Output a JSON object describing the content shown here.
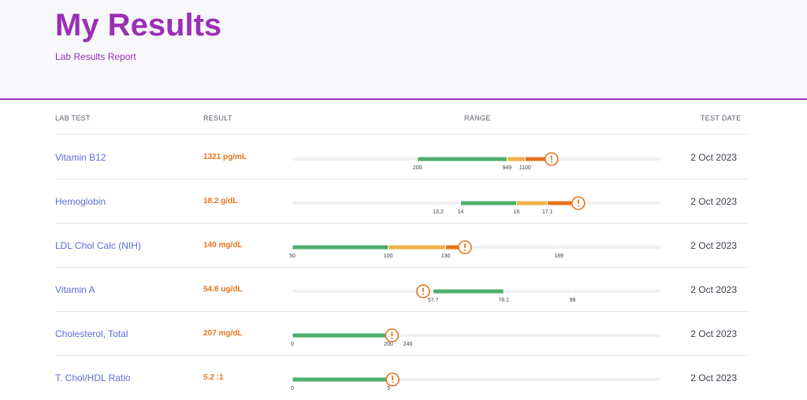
{
  "header": {
    "title": "My Results",
    "subtitle": "Lab Results Report"
  },
  "table": {
    "columns": {
      "lab_test": "LAB TEST",
      "result": "RESULT",
      "range": "RANGE",
      "test_date": "TEST DATE"
    },
    "rows": [
      {
        "name": "Vitamin B12",
        "result": "1321 pg/mL",
        "value": 1321,
        "date": "2 Oct 2023",
        "ticks": [
          {
            "label": "200",
            "value": 200
          },
          {
            "label": "949",
            "value": 949
          },
          {
            "label": "1100",
            "value": 1100
          }
        ],
        "scale": [
          -846,
          2232
        ],
        "zones": [
          {
            "from": 200,
            "to": 949,
            "level": "normal"
          },
          {
            "from": 949,
            "to": 1100,
            "level": "borderline"
          },
          {
            "from": 1100,
            "to": 1321,
            "level": "high"
          }
        ]
      },
      {
        "name": "Hemoglobin",
        "result": "18.2 g/dL",
        "value": 18.2,
        "date": "2 Oct 2023",
        "ticks": [
          {
            "label": "13.2",
            "value": 13.2
          },
          {
            "label": "14",
            "value": 14
          },
          {
            "label": "16",
            "value": 16
          },
          {
            "label": "17.1",
            "value": 17.1
          }
        ],
        "scale": [
          8.0,
          21.13
        ],
        "zones": [
          {
            "from": 14,
            "to": 16,
            "level": "normal"
          },
          {
            "from": 16,
            "to": 17.1,
            "level": "borderline"
          },
          {
            "from": 17.1,
            "to": 18.2,
            "level": "high"
          }
        ]
      },
      {
        "name": "LDL Chol Calc (NIH)",
        "result": "140 mg/dL",
        "value": 140,
        "date": "2 Oct 2023",
        "ticks": [
          {
            "label": "50",
            "value": 50
          },
          {
            "label": "100",
            "value": 100
          },
          {
            "label": "130",
            "value": 130
          },
          {
            "label": "189",
            "value": 189
          }
        ],
        "scale": [
          50,
          242
        ],
        "zones": [
          {
            "from": 50,
            "to": 100,
            "level": "normal"
          },
          {
            "from": 100,
            "to": 130,
            "level": "borderline"
          },
          {
            "from": 130,
            "to": 140,
            "level": "high"
          }
        ]
      },
      {
        "name": "Vitamin A",
        "result": "54.8 ug/dL",
        "value": 54.8,
        "date": "2 Oct 2023",
        "ticks": [
          {
            "label": "57.7",
            "value": 57.7
          },
          {
            "label": "78.1",
            "value": 78.1
          },
          {
            "label": "98",
            "value": 98
          }
        ],
        "scale": [
          17.0,
          123.4
        ],
        "zones": [
          {
            "from": 57.7,
            "to": 78.1,
            "level": "normal"
          }
        ]
      },
      {
        "name": "Cholesterol, Total",
        "result": "207 mg/dL",
        "value": 207,
        "date": "2 Oct 2023",
        "ticks": [
          {
            "label": "0",
            "value": 0
          },
          {
            "label": "200",
            "value": 200
          },
          {
            "label": "240",
            "value": 240
          }
        ],
        "scale": [
          0,
          765
        ],
        "zones": [
          {
            "from": 0,
            "to": 200,
            "level": "normal"
          },
          {
            "from": 200,
            "to": 207,
            "level": "high"
          }
        ]
      },
      {
        "name": "T. Chol/HDL Ratio",
        "result": "5.2 :1",
        "value": 5.2,
        "date": "2 Oct 2023",
        "ticks": [
          {
            "label": "0",
            "value": 0
          },
          {
            "label": "5",
            "value": 5
          }
        ],
        "scale": [
          0,
          19.1
        ],
        "zones": [
          {
            "from": 0,
            "to": 5,
            "level": "normal"
          },
          {
            "from": 5,
            "to": 5.2,
            "level": "high"
          }
        ]
      }
    ]
  },
  "colors": {
    "accent": "#9b2fb5",
    "link": "#5a6fd8",
    "result": "#e8731e",
    "normal": "#4caf6a",
    "borderline": "#f2b14a",
    "high": "#e8731e",
    "track": "#f0f0f2"
  },
  "icons": {
    "alert": "alert-circle-icon"
  }
}
